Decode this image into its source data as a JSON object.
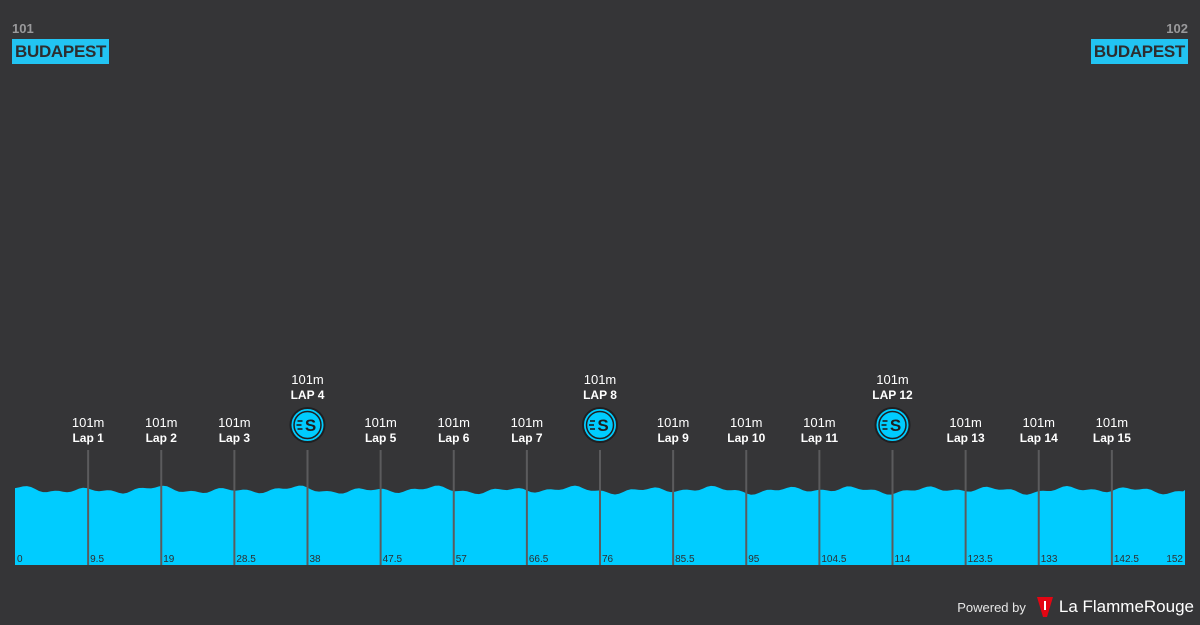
{
  "start": {
    "number": "101",
    "name": "BUDAPEST"
  },
  "finish": {
    "number": "102",
    "name": "BUDAPEST"
  },
  "colors": {
    "background": "#353537",
    "profile": "#00ccff",
    "accent": "#22c4f2",
    "brand": "#e30613"
  },
  "footer": {
    "powered_by": "Powered by",
    "brand": "La FlammeRouge"
  },
  "chart_data": {
    "type": "area",
    "x_unit": "km",
    "xlim": [
      0,
      152
    ],
    "x_ticks": [
      "0",
      "9.5",
      "19",
      "28.5",
      "38",
      "47.5",
      "57",
      "66.5",
      "76",
      "85.5",
      "95",
      "104.5",
      "114",
      "123.5",
      "133",
      "142.5",
      "152"
    ],
    "waypoints": [
      {
        "km": 9.5,
        "elevation": "101m",
        "label": "Lap 1",
        "sprint": false
      },
      {
        "km": 19,
        "elevation": "101m",
        "label": "Lap 2",
        "sprint": false
      },
      {
        "km": 28.5,
        "elevation": "101m",
        "label": "Lap 3",
        "sprint": false
      },
      {
        "km": 38,
        "elevation": "101m",
        "label": "LAP 4",
        "sprint": true,
        "icon": "sprint-icon"
      },
      {
        "km": 47.5,
        "elevation": "101m",
        "label": "Lap 5",
        "sprint": false
      },
      {
        "km": 57,
        "elevation": "101m",
        "label": "Lap 6",
        "sprint": false
      },
      {
        "km": 66.5,
        "elevation": "101m",
        "label": "Lap 7",
        "sprint": false
      },
      {
        "km": 76,
        "elevation": "101m",
        "label": "LAP 8",
        "sprint": true,
        "icon": "sprint-icon"
      },
      {
        "km": 85.5,
        "elevation": "101m",
        "label": "Lap 9",
        "sprint": false
      },
      {
        "km": 95,
        "elevation": "101m",
        "label": "Lap 10",
        "sprint": false
      },
      {
        "km": 104.5,
        "elevation": "101m",
        "label": "Lap 11",
        "sprint": false
      },
      {
        "km": 114,
        "elevation": "101m",
        "label": "LAP 12",
        "sprint": true,
        "icon": "sprint-icon"
      },
      {
        "km": 123.5,
        "elevation": "101m",
        "label": "Lap 13",
        "sprint": false
      },
      {
        "km": 133,
        "elevation": "101m",
        "label": "Lap 14",
        "sprint": false
      },
      {
        "km": 142.5,
        "elevation": "101m",
        "label": "Lap 15",
        "sprint": false
      }
    ]
  }
}
